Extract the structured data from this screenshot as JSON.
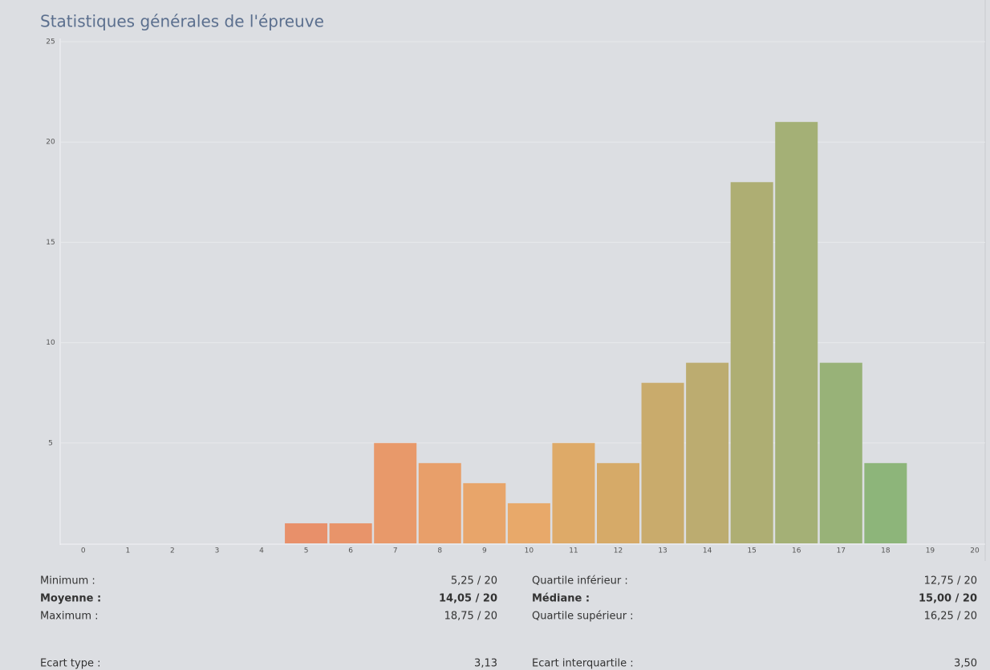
{
  "chart_data": {
    "type": "bar",
    "title": "Statistiques générales de l'épreuve",
    "categories": [
      "0",
      "1",
      "2",
      "3",
      "4",
      "5",
      "6",
      "7",
      "8",
      "9",
      "10",
      "11",
      "12",
      "13",
      "14",
      "15",
      "16",
      "17",
      "18",
      "19",
      "20"
    ],
    "values": [
      0,
      0,
      0,
      0,
      0,
      1,
      1,
      5,
      4,
      3,
      2,
      5,
      4,
      8,
      9,
      18,
      21,
      9,
      4,
      0,
      0
    ],
    "colors": [
      "#e8906a",
      "#e8906a",
      "#e8906a",
      "#e8906a",
      "#e8906a",
      "#e8906a",
      "#e8946a",
      "#e8996a",
      "#e89f6a",
      "#e8a56a",
      "#e8a96a",
      "#deaa68",
      "#d6aa68",
      "#c9ab6c",
      "#bcac70",
      "#aeae73",
      "#a4b076",
      "#98b278",
      "#8db57a",
      "#8db57a",
      "#8db57a"
    ],
    "ylim": [
      0,
      25
    ],
    "yticks": [
      5,
      10,
      15,
      20,
      25
    ],
    "grid": true
  },
  "stats": {
    "rows": [
      {
        "cells": [
          "Minimum :",
          "5,25 / 20",
          "Quartile inférieur :",
          "12,75 / 20"
        ],
        "bold": false
      },
      {
        "cells": [
          "Moyenne :",
          "14,05 / 20",
          "Médiane :",
          "15,00 / 20"
        ],
        "bold": true
      },
      {
        "cells": [
          "Maximum :",
          "18,75 / 20",
          "Quartile supérieur :",
          "16,25 / 20"
        ],
        "bold": false
      },
      {
        "cells": [
          "Ecart type :",
          "3,13",
          "Ecart interquartile :",
          "3,50"
        ],
        "bold": false
      }
    ]
  }
}
